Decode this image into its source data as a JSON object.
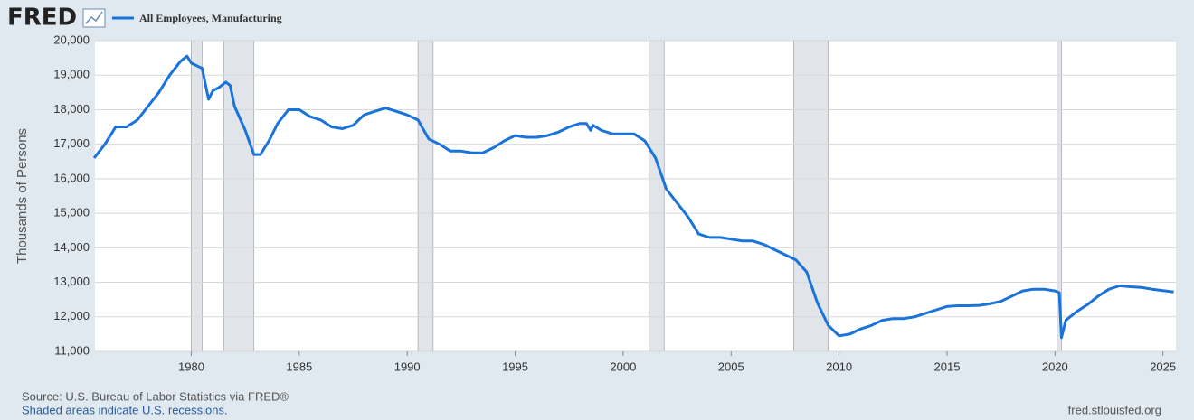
{
  "header": {
    "logo": "FRED"
  },
  "chart_data": {
    "type": "line",
    "ylabel": "Thousands of Persons",
    "source": "Source: U.S. Bureau of Labor Statistics via FRED®",
    "note": "Shaded areas indicate U.S. recessions.",
    "url": "fred.stlouisfed.org",
    "xlim": [
      1975.54,
      2025.6
    ],
    "xticks": [
      1980,
      1985,
      1990,
      1995,
      2000,
      2005,
      2010,
      2015,
      2020,
      2025
    ],
    "ylim": [
      11000,
      20000
    ],
    "yticks": [
      {
        "value": 11000,
        "label": "11,000"
      },
      {
        "value": 12000,
        "label": "12,000"
      },
      {
        "value": 13000,
        "label": "13,000"
      },
      {
        "value": 14000,
        "label": "14,000"
      },
      {
        "value": 15000,
        "label": "15,000"
      },
      {
        "value": 16000,
        "label": "16,000"
      },
      {
        "value": 17000,
        "label": "17,000"
      },
      {
        "value": 18000,
        "label": "18,000"
      },
      {
        "value": 19000,
        "label": "19,000"
      },
      {
        "value": 20000,
        "label": "20,000"
      }
    ],
    "grid": true,
    "recessions": [
      [
        1980.0,
        1980.5
      ],
      [
        1981.5,
        1982.9
      ],
      [
        1990.5,
        1991.2
      ],
      [
        2001.2,
        2001.9
      ],
      [
        2007.9,
        2009.5
      ],
      [
        2020.1,
        2020.3
      ]
    ],
    "x": [
      1975.5,
      1976,
      1976.5,
      1977,
      1977.5,
      1978,
      1978.5,
      1979,
      1979.5,
      1979.8,
      1980,
      1980.5,
      1980.8,
      1981,
      1981.3,
      1981.6,
      1981.8,
      1982,
      1982.5,
      1982.9,
      1983.2,
      1983.6,
      1984,
      1984.5,
      1985,
      1985.5,
      1986,
      1986.5,
      1987,
      1987.5,
      1988,
      1988.5,
      1989,
      1989.5,
      1990,
      1990.5,
      1991,
      1991.5,
      1992,
      1992.5,
      1993,
      1993.5,
      1994,
      1994.5,
      1995,
      1995.5,
      1996,
      1996.5,
      1997,
      1997.5,
      1998,
      1998.3,
      1998.5,
      1998.6,
      1999,
      1999.5,
      2000,
      2000.5,
      2001,
      2001.5,
      2002,
      2002.5,
      2003,
      2003.5,
      2004,
      2004.5,
      2005,
      2005.5,
      2006,
      2006.5,
      2007,
      2007.5,
      2008,
      2008.5,
      2009,
      2009.5,
      2010,
      2010.5,
      2011,
      2011.5,
      2012,
      2012.5,
      2013,
      2013.5,
      2014,
      2014.5,
      2015,
      2015.5,
      2016,
      2016.5,
      2017,
      2017.5,
      2018,
      2018.5,
      2019,
      2019.5,
      2020,
      2020.2,
      2020.3,
      2020.5,
      2021,
      2021.5,
      2022,
      2022.5,
      2023,
      2023.5,
      2024,
      2024.5,
      2025,
      2025.5
    ],
    "series": [
      {
        "name": "All Employees, Manufacturing",
        "color": "#1a73d9",
        "values": [
          16600,
          17000,
          17500,
          17500,
          17700,
          18100,
          18500,
          19000,
          19400,
          19550,
          19350,
          19200,
          18300,
          18550,
          18650,
          18800,
          18700,
          18100,
          17400,
          16700,
          16700,
          17100,
          17600,
          18000,
          18000,
          17800,
          17700,
          17500,
          17450,
          17550,
          17850,
          17950,
          18050,
          17950,
          17850,
          17700,
          17150,
          17000,
          16800,
          16800,
          16750,
          16750,
          16900,
          17100,
          17250,
          17200,
          17200,
          17250,
          17350,
          17500,
          17600,
          17600,
          17400,
          17550,
          17400,
          17300,
          17300,
          17300,
          17100,
          16600,
          15700,
          15300,
          14900,
          14400,
          14300,
          14300,
          14250,
          14200,
          14200,
          14100,
          13950,
          13800,
          13650,
          13300,
          12400,
          11750,
          11450,
          11500,
          11650,
          11750,
          11900,
          11950,
          11950,
          12000,
          12100,
          12200,
          12300,
          12320,
          12320,
          12330,
          12380,
          12450,
          12600,
          12750,
          12800,
          12800,
          12750,
          12700,
          11400,
          11900,
          12150,
          12350,
          12600,
          12800,
          12900,
          12870,
          12850,
          12800,
          12760,
          12720
        ]
      }
    ]
  }
}
